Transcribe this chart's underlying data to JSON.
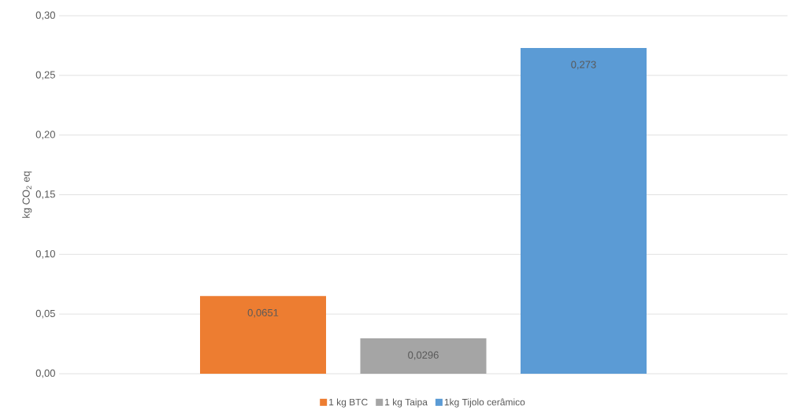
{
  "chart_data": {
    "type": "bar",
    "ylabel": "kg CO$_{2}$ eq",
    "categories": [
      null
    ],
    "series": [
      {
        "name": "1 kg BTC",
        "color": "#ed7d31",
        "values": [
          0.0651
        ],
        "value_labels": [
          "0,0651"
        ]
      },
      {
        "name": "1 kg Taipa",
        "color": "#a5a5a5",
        "values": [
          0.0296
        ],
        "value_labels": [
          "0,0296"
        ]
      },
      {
        "name": "1kg Tijolo cerâmico",
        "color": "#5b9bd5",
        "values": [
          0.273
        ],
        "value_labels": [
          "0,273"
        ]
      }
    ],
    "ylim": [
      0,
      0.3
    ],
    "yticks": [
      {
        "value": 0,
        "label": "0,00"
      },
      {
        "value": 0.05,
        "label": "0,05"
      },
      {
        "value": 0.1,
        "label": "0,10"
      },
      {
        "value": 0.15,
        "label": "0,15"
      },
      {
        "value": 0.2,
        "label": "0,20"
      },
      {
        "value": 0.25,
        "label": "0,25"
      },
      {
        "value": 0.3,
        "label": "0,30"
      }
    ],
    "grid": "y",
    "legend": "bottom"
  }
}
